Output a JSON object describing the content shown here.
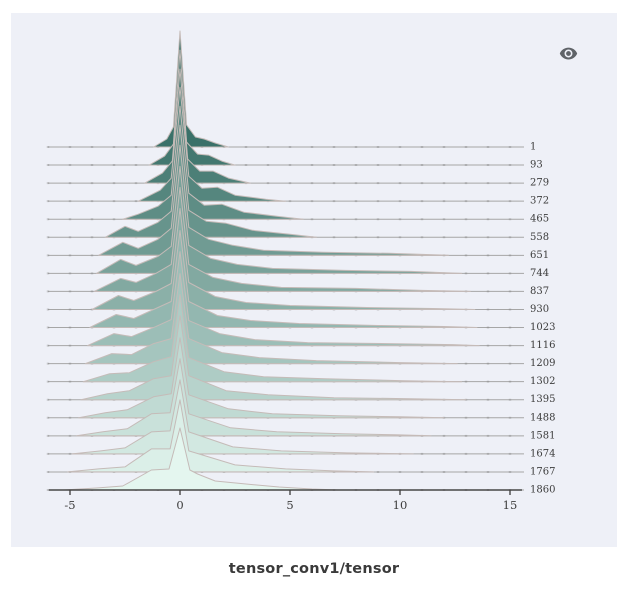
{
  "window": {
    "background": "#ffffff"
  },
  "card": {
    "background": "#eef0f7",
    "title": "tensor_conv1/tensor",
    "toolbar": {
      "eye_icon_color": "#5f6368"
    }
  },
  "chart_data": {
    "type": "area",
    "subtype": "ridgeline-offset-histograms",
    "title": "tensor_conv1/tensor",
    "legend_position": "none",
    "grid": "one-horizontal-baseline-per-step",
    "x_tick_values": [
      -5,
      0,
      5,
      10,
      15
    ],
    "x_range": [
      -6,
      15.6
    ],
    "step_axis_side": "right",
    "height_units": "px-above-row-baseline",
    "colors": {
      "grid_line": "#a6a6a6",
      "grid_dash": "#878787",
      "axis_line": "#474747",
      "tick_label": "#3d3d3d",
      "row_label": "#3d3d3d",
      "outline_stroke": "#c5bbb8"
    },
    "rows": [
      {
        "step": 1,
        "color": "#3a7169",
        "points": [
          [
            -1.2,
            0
          ],
          [
            -0.6,
            8
          ],
          [
            -0.3,
            20
          ],
          [
            0,
            116
          ],
          [
            0.3,
            22
          ],
          [
            0.7,
            10
          ],
          [
            1.1,
            8
          ],
          [
            1.6,
            4
          ],
          [
            2.2,
            0
          ]
        ]
      },
      {
        "step": 93,
        "color": "#437870",
        "points": [
          [
            -1.4,
            0
          ],
          [
            -0.7,
            9
          ],
          [
            -0.3,
            21
          ],
          [
            0,
            115
          ],
          [
            0.3,
            23
          ],
          [
            0.8,
            11
          ],
          [
            1.3,
            10
          ],
          [
            1.9,
            4
          ],
          [
            2.5,
            0
          ]
        ]
      },
      {
        "step": 279,
        "color": "#4c7f77",
        "points": [
          [
            -1.6,
            0
          ],
          [
            -0.8,
            10
          ],
          [
            -0.35,
            22
          ],
          [
            0,
            114
          ],
          [
            0.35,
            24
          ],
          [
            0.9,
            12
          ],
          [
            1.5,
            12
          ],
          [
            2.2,
            5
          ],
          [
            3.2,
            0
          ]
        ]
      },
      {
        "step": 372,
        "color": "#55867e",
        "points": [
          [
            -1.9,
            0
          ],
          [
            -0.9,
            11
          ],
          [
            -0.4,
            23
          ],
          [
            0,
            114
          ],
          [
            0.4,
            25
          ],
          [
            1.0,
            13
          ],
          [
            1.7,
            14
          ],
          [
            2.5,
            6
          ],
          [
            3.9,
            2
          ],
          [
            4.8,
            0
          ]
        ]
      },
      {
        "step": 465,
        "color": "#5e8d85",
        "points": [
          [
            -2.6,
            0
          ],
          [
            -1.9,
            5
          ],
          [
            -1.0,
            13
          ],
          [
            -0.4,
            24
          ],
          [
            0,
            113
          ],
          [
            0.4,
            26
          ],
          [
            1.1,
            14
          ],
          [
            1.9,
            15
          ],
          [
            2.9,
            7
          ],
          [
            4.4,
            3
          ],
          [
            5.6,
            0
          ]
        ]
      },
      {
        "step": 558,
        "color": "#67948c",
        "points": [
          [
            -3.4,
            0
          ],
          [
            -2.5,
            11
          ],
          [
            -1.9,
            6
          ],
          [
            -1.0,
            15
          ],
          [
            -0.4,
            26
          ],
          [
            0,
            112
          ],
          [
            0.4,
            27
          ],
          [
            1.2,
            16
          ],
          [
            2.1,
            14
          ],
          [
            3.3,
            7
          ],
          [
            5.0,
            3
          ],
          [
            6.2,
            0
          ]
        ]
      },
      {
        "step": 651,
        "color": "#709b93",
        "points": [
          [
            -3.7,
            0
          ],
          [
            -2.6,
            13
          ],
          [
            -1.9,
            7
          ],
          [
            -1.0,
            16
          ],
          [
            -0.4,
            27
          ],
          [
            0,
            110
          ],
          [
            0.4,
            28
          ],
          [
            1.3,
            16
          ],
          [
            2.4,
            10
          ],
          [
            3.8,
            5
          ],
          [
            6.5,
            3
          ],
          [
            9.5,
            2
          ],
          [
            12.2,
            0
          ]
        ]
      },
      {
        "step": 744,
        "color": "#79a29a",
        "points": [
          [
            -3.8,
            0
          ],
          [
            -2.7,
            14
          ],
          [
            -2.0,
            8
          ],
          [
            -1.0,
            17
          ],
          [
            -0.4,
            27
          ],
          [
            0,
            107
          ],
          [
            0.4,
            28
          ],
          [
            1.4,
            15
          ],
          [
            2.6,
            9
          ],
          [
            4.2,
            5
          ],
          [
            7.5,
            3
          ],
          [
            10.5,
            2
          ],
          [
            12.8,
            0
          ]
        ]
      },
      {
        "step": 837,
        "color": "#82a9a1",
        "points": [
          [
            -3.9,
            0
          ],
          [
            -2.7,
            13
          ],
          [
            -2.0,
            9
          ],
          [
            -1.1,
            18
          ],
          [
            -0.4,
            27
          ],
          [
            0,
            104
          ],
          [
            0.4,
            27
          ],
          [
            1.5,
            14
          ],
          [
            2.8,
            8
          ],
          [
            4.6,
            4
          ],
          [
            8.0,
            3
          ],
          [
            11.0,
            1
          ],
          [
            13.2,
            0
          ]
        ]
      },
      {
        "step": 930,
        "color": "#8bb0a8",
        "points": [
          [
            -4.0,
            0
          ],
          [
            -2.8,
            14
          ],
          [
            -2.1,
            9
          ],
          [
            -1.1,
            18
          ],
          [
            -0.4,
            26
          ],
          [
            0,
            101
          ],
          [
            0.4,
            27
          ],
          [
            1.6,
            13
          ],
          [
            3.0,
            7
          ],
          [
            5.0,
            4
          ],
          [
            8.5,
            2
          ],
          [
            11.5,
            1
          ],
          [
            13.4,
            0
          ]
        ]
      },
      {
        "step": 1023,
        "color": "#93b7b0",
        "points": [
          [
            -4.1,
            0
          ],
          [
            -2.9,
            13
          ],
          [
            -2.1,
            9
          ],
          [
            -1.1,
            19
          ],
          [
            -0.4,
            26
          ],
          [
            0,
            97
          ],
          [
            0.4,
            26
          ],
          [
            1.7,
            12
          ],
          [
            3.2,
            7
          ],
          [
            5.4,
            4
          ],
          [
            9.0,
            2
          ],
          [
            12.0,
            1
          ],
          [
            13.5,
            0
          ]
        ]
      },
      {
        "step": 1116,
        "color": "#9cbeb7",
        "points": [
          [
            -4.2,
            0
          ],
          [
            -3.0,
            12
          ],
          [
            -2.2,
            9
          ],
          [
            -1.1,
            19
          ],
          [
            -0.4,
            26
          ],
          [
            0,
            94
          ],
          [
            0.4,
            25
          ],
          [
            1.8,
            12
          ],
          [
            3.4,
            6
          ],
          [
            5.8,
            3
          ],
          [
            9.5,
            2
          ],
          [
            12.4,
            1
          ],
          [
            13.6,
            0
          ]
        ]
      },
      {
        "step": 1209,
        "color": "#a5c5be",
        "points": [
          [
            -4.3,
            0
          ],
          [
            -3.1,
            10
          ],
          [
            -2.2,
            9
          ],
          [
            -1.2,
            20
          ],
          [
            -0.4,
            25
          ],
          [
            0,
            90
          ],
          [
            0.4,
            25
          ],
          [
            1.9,
            11
          ],
          [
            3.6,
            6
          ],
          [
            6.2,
            3
          ],
          [
            10.0,
            1
          ],
          [
            12.6,
            0
          ]
        ]
      },
      {
        "step": 1302,
        "color": "#aeccc5",
        "points": [
          [
            -4.4,
            0
          ],
          [
            -3.2,
            8
          ],
          [
            -2.3,
            9
          ],
          [
            -1.2,
            20
          ],
          [
            -0.4,
            25
          ],
          [
            0,
            87
          ],
          [
            0.4,
            24
          ],
          [
            2.0,
            10
          ],
          [
            3.8,
            5
          ],
          [
            6.6,
            3
          ],
          [
            10.2,
            1
          ],
          [
            12.8,
            0
          ]
        ]
      },
      {
        "step": 1395,
        "color": "#b7d3cc",
        "points": [
          [
            -4.5,
            0
          ],
          [
            -3.3,
            6
          ],
          [
            -2.3,
            9
          ],
          [
            -1.2,
            21
          ],
          [
            -0.4,
            24
          ],
          [
            0,
            84
          ],
          [
            0.4,
            24
          ],
          [
            2.1,
            9
          ],
          [
            4.0,
            5
          ],
          [
            7.0,
            2
          ],
          [
            10.5,
            1
          ],
          [
            13.0,
            0
          ]
        ]
      },
      {
        "step": 1488,
        "color": "#c0dad3",
        "points": [
          [
            -4.6,
            0
          ],
          [
            -3.4,
            5
          ],
          [
            -2.4,
            8
          ],
          [
            -1.2,
            21
          ],
          [
            -0.4,
            24
          ],
          [
            0,
            80
          ],
          [
            0.4,
            23
          ],
          [
            2.2,
            9
          ],
          [
            4.2,
            4
          ],
          [
            7.2,
            2
          ],
          [
            10.0,
            1
          ],
          [
            12.0,
            0
          ]
        ]
      },
      {
        "step": 1581,
        "color": "#c9e1da",
        "points": [
          [
            -4.7,
            0
          ],
          [
            -3.5,
            4
          ],
          [
            -2.4,
            7
          ],
          [
            -1.3,
            22
          ],
          [
            -0.45,
            23
          ],
          [
            0,
            77
          ],
          [
            0.4,
            22
          ],
          [
            2.3,
            8
          ],
          [
            4.4,
            4
          ],
          [
            7.4,
            2
          ],
          [
            9.8,
            1
          ],
          [
            11.4,
            0
          ]
        ]
      },
      {
        "step": 1674,
        "color": "#d2e8e1",
        "points": [
          [
            -4.9,
            0
          ],
          [
            -3.6,
            3
          ],
          [
            -2.5,
            6
          ],
          [
            -1.3,
            22
          ],
          [
            -0.45,
            23
          ],
          [
            0,
            74
          ],
          [
            0.4,
            22
          ],
          [
            2.4,
            7
          ],
          [
            4.6,
            3
          ],
          [
            7.6,
            1
          ],
          [
            10.6,
            0
          ]
        ]
      },
      {
        "step": 1767,
        "color": "#dbefe8",
        "points": [
          [
            -5.1,
            0
          ],
          [
            -3.7,
            3
          ],
          [
            -2.5,
            5
          ],
          [
            -1.3,
            23
          ],
          [
            -0.45,
            23
          ],
          [
            0,
            72
          ],
          [
            0.4,
            21
          ],
          [
            2.5,
            7
          ],
          [
            4.8,
            3
          ],
          [
            7.0,
            1
          ],
          [
            8.8,
            0
          ]
        ]
      },
      {
        "step": 1860,
        "color": "#e4f6ef",
        "points": [
          [
            -5.3,
            0
          ],
          [
            -3.8,
            2
          ],
          [
            -2.6,
            4
          ],
          [
            -1.3,
            20
          ],
          [
            -0.5,
            21
          ],
          [
            0,
            62
          ],
          [
            0.45,
            20
          ],
          [
            0.8,
            16
          ],
          [
            1.6,
            9
          ],
          [
            3.0,
            6
          ],
          [
            4.5,
            3
          ],
          [
            6.0,
            1
          ],
          [
            7.2,
            0
          ]
        ]
      }
    ]
  }
}
